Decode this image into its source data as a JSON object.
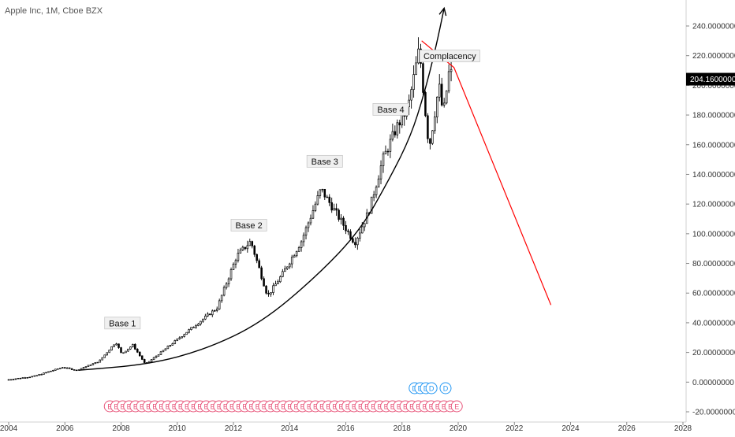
{
  "header": {
    "title": "Apple Inc, 1M, Cboe BZX"
  },
  "chart_data": {
    "type": "candlestick",
    "symbol": "Apple Inc",
    "interval": "1M",
    "exchange": "Cboe BZX",
    "xlim": [
      2004,
      2028
    ],
    "ylim": [
      -20,
      250
    ],
    "x_ticks": [
      "2004",
      "2006",
      "2008",
      "2010",
      "2012",
      "2014",
      "2016",
      "2018",
      "2020",
      "2022",
      "2024",
      "2026",
      "2028"
    ],
    "y_ticks": [
      "240.00000000",
      "220.00000000",
      "200.00000000",
      "180.00000000",
      "160.00000000",
      "140.00000000",
      "120.00000000",
      "100.00000000",
      "80.00000000",
      "60.00000000",
      "40.00000000",
      "20.00000000",
      "0.00000000",
      "-20.00000000"
    ],
    "last_price": {
      "label": "204.16000000",
      "value": 204.16,
      "color": "#000000"
    },
    "price_anchors": [
      {
        "t": 2004.0,
        "v": 1.5
      },
      {
        "t": 2005.0,
        "v": 4
      },
      {
        "t": 2006.0,
        "v": 10
      },
      {
        "t": 2006.5,
        "v": 8
      },
      {
        "t": 2007.3,
        "v": 14
      },
      {
        "t": 2007.9,
        "v": 27
      },
      {
        "t": 2008.1,
        "v": 19
      },
      {
        "t": 2008.5,
        "v": 25
      },
      {
        "t": 2008.95,
        "v": 12
      },
      {
        "t": 2009.5,
        "v": 20
      },
      {
        "t": 2010.5,
        "v": 35
      },
      {
        "t": 2011.5,
        "v": 50
      },
      {
        "t": 2012.2,
        "v": 85
      },
      {
        "t": 2012.7,
        "v": 95
      },
      {
        "t": 2013.3,
        "v": 58
      },
      {
        "t": 2013.8,
        "v": 72
      },
      {
        "t": 2014.5,
        "v": 95
      },
      {
        "t": 2015.2,
        "v": 130
      },
      {
        "t": 2015.8,
        "v": 112
      },
      {
        "t": 2016.4,
        "v": 94
      },
      {
        "t": 2016.9,
        "v": 115
      },
      {
        "t": 2017.4,
        "v": 150
      },
      {
        "t": 2017.9,
        "v": 172
      },
      {
        "t": 2018.3,
        "v": 185
      },
      {
        "t": 2018.7,
        "v": 225
      },
      {
        "t": 2018.95,
        "v": 175
      },
      {
        "t": 2019.05,
        "v": 158
      },
      {
        "t": 2019.4,
        "v": 200
      },
      {
        "t": 2019.55,
        "v": 180
      },
      {
        "t": 2019.75,
        "v": 208
      }
    ],
    "annotations": [
      {
        "label": "Base 1",
        "t": 2008.05,
        "v": 39
      },
      {
        "label": "Base 2",
        "t": 2012.55,
        "v": 105
      },
      {
        "label": "Base 3",
        "t": 2015.25,
        "v": 148
      },
      {
        "label": "Base 4",
        "t": 2017.6,
        "v": 183
      },
      {
        "label": "Complacency",
        "t": 2019.7,
        "v": 219
      }
    ],
    "curve": {
      "points": [
        {
          "t": 2006.5,
          "v": 8
        },
        {
          "t": 2009,
          "v": 12
        },
        {
          "t": 2011,
          "v": 22
        },
        {
          "t": 2013,
          "v": 40
        },
        {
          "t": 2015,
          "v": 72
        },
        {
          "t": 2016.5,
          "v": 102
        },
        {
          "t": 2017.5,
          "v": 135
        },
        {
          "t": 2018.3,
          "v": 165
        },
        {
          "t": 2018.8,
          "v": 195
        },
        {
          "t": 2019.2,
          "v": 225
        },
        {
          "t": 2019.5,
          "v": 252
        }
      ],
      "color": "#000000"
    },
    "trendline": {
      "points": [
        {
          "t": 2018.7,
          "v": 230
        },
        {
          "t": 2019.85,
          "v": 212
        },
        {
          "t": 2023.3,
          "v": 52
        }
      ],
      "color": "#ff0000"
    },
    "events": {
      "earnings": {
        "letter": "E",
        "color": "#e8557a",
        "count": 55
      },
      "dividends": {
        "letters": [
          "D",
          "D",
          "D",
          "D",
          "D"
        ],
        "color": "#2196f3"
      }
    },
    "grid": false
  }
}
